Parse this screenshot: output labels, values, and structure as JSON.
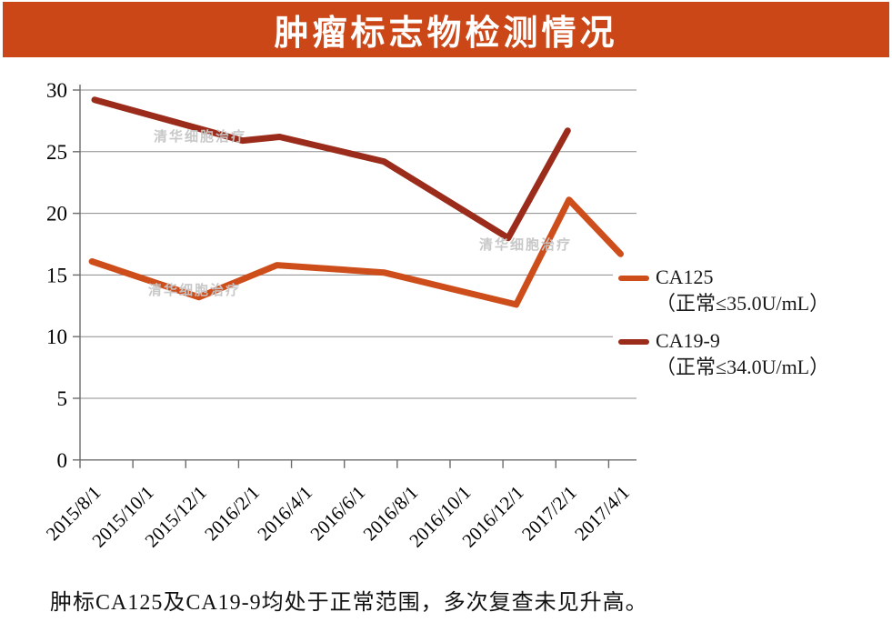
{
  "header": {
    "title": "肿瘤标志物检测情况"
  },
  "chart_data": {
    "type": "line",
    "title": "肿瘤标志物检测情况",
    "x_tick_labels": [
      "2015/8/1",
      "2015/10/1",
      "2015/12/1",
      "2016/2/1",
      "2016/4/1",
      "2016/6/1",
      "2016/8/1",
      "2016/10/1",
      "2016/12/1",
      "2017/2/1",
      "2017/4/1"
    ],
    "x_scale": "date axis, one tick = 2 months; series point x = months after 2015/8/1",
    "y_ticks": [
      0,
      5,
      10,
      15,
      20,
      25,
      30
    ],
    "ylim": [
      0,
      30
    ],
    "grid": "horizontal gridlines at each y tick",
    "legend_position": "right of plot",
    "series": [
      {
        "name": "CA125",
        "note": "（正常≤35.0U/mL）",
        "color": "#CE4E1B",
        "points_months_value": [
          [
            0.45,
            16.1
          ],
          [
            4.5,
            13.2
          ],
          [
            7.45,
            15.8
          ],
          [
            11.5,
            15.2
          ],
          [
            16.5,
            12.6
          ],
          [
            18.5,
            21.1
          ],
          [
            20.45,
            16.7
          ]
        ]
      },
      {
        "name": "CA19-9",
        "note": "（正常≤34.0U/mL）",
        "color": "#9B2C1B",
        "points_months_value": [
          [
            0.55,
            29.2
          ],
          [
            6.15,
            25.9
          ],
          [
            7.55,
            26.2
          ],
          [
            11.5,
            24.2
          ],
          [
            16.2,
            18.0
          ],
          [
            18.45,
            26.7
          ]
        ]
      }
    ]
  },
  "watermark": {
    "text": "清华细胞治疗"
  },
  "caption": "肿标CA125及CA19-9均处于正常范围，多次复查未见升高。",
  "colors": {
    "banner": "#CB4718",
    "title_text": "#FFFFFF",
    "ca125_line": "#CE4E1B",
    "ca199_line": "#9B2C1B",
    "gridline": "#8C8C8C",
    "axis": "#6B6B6B",
    "watermark": "#C6C6C6"
  }
}
